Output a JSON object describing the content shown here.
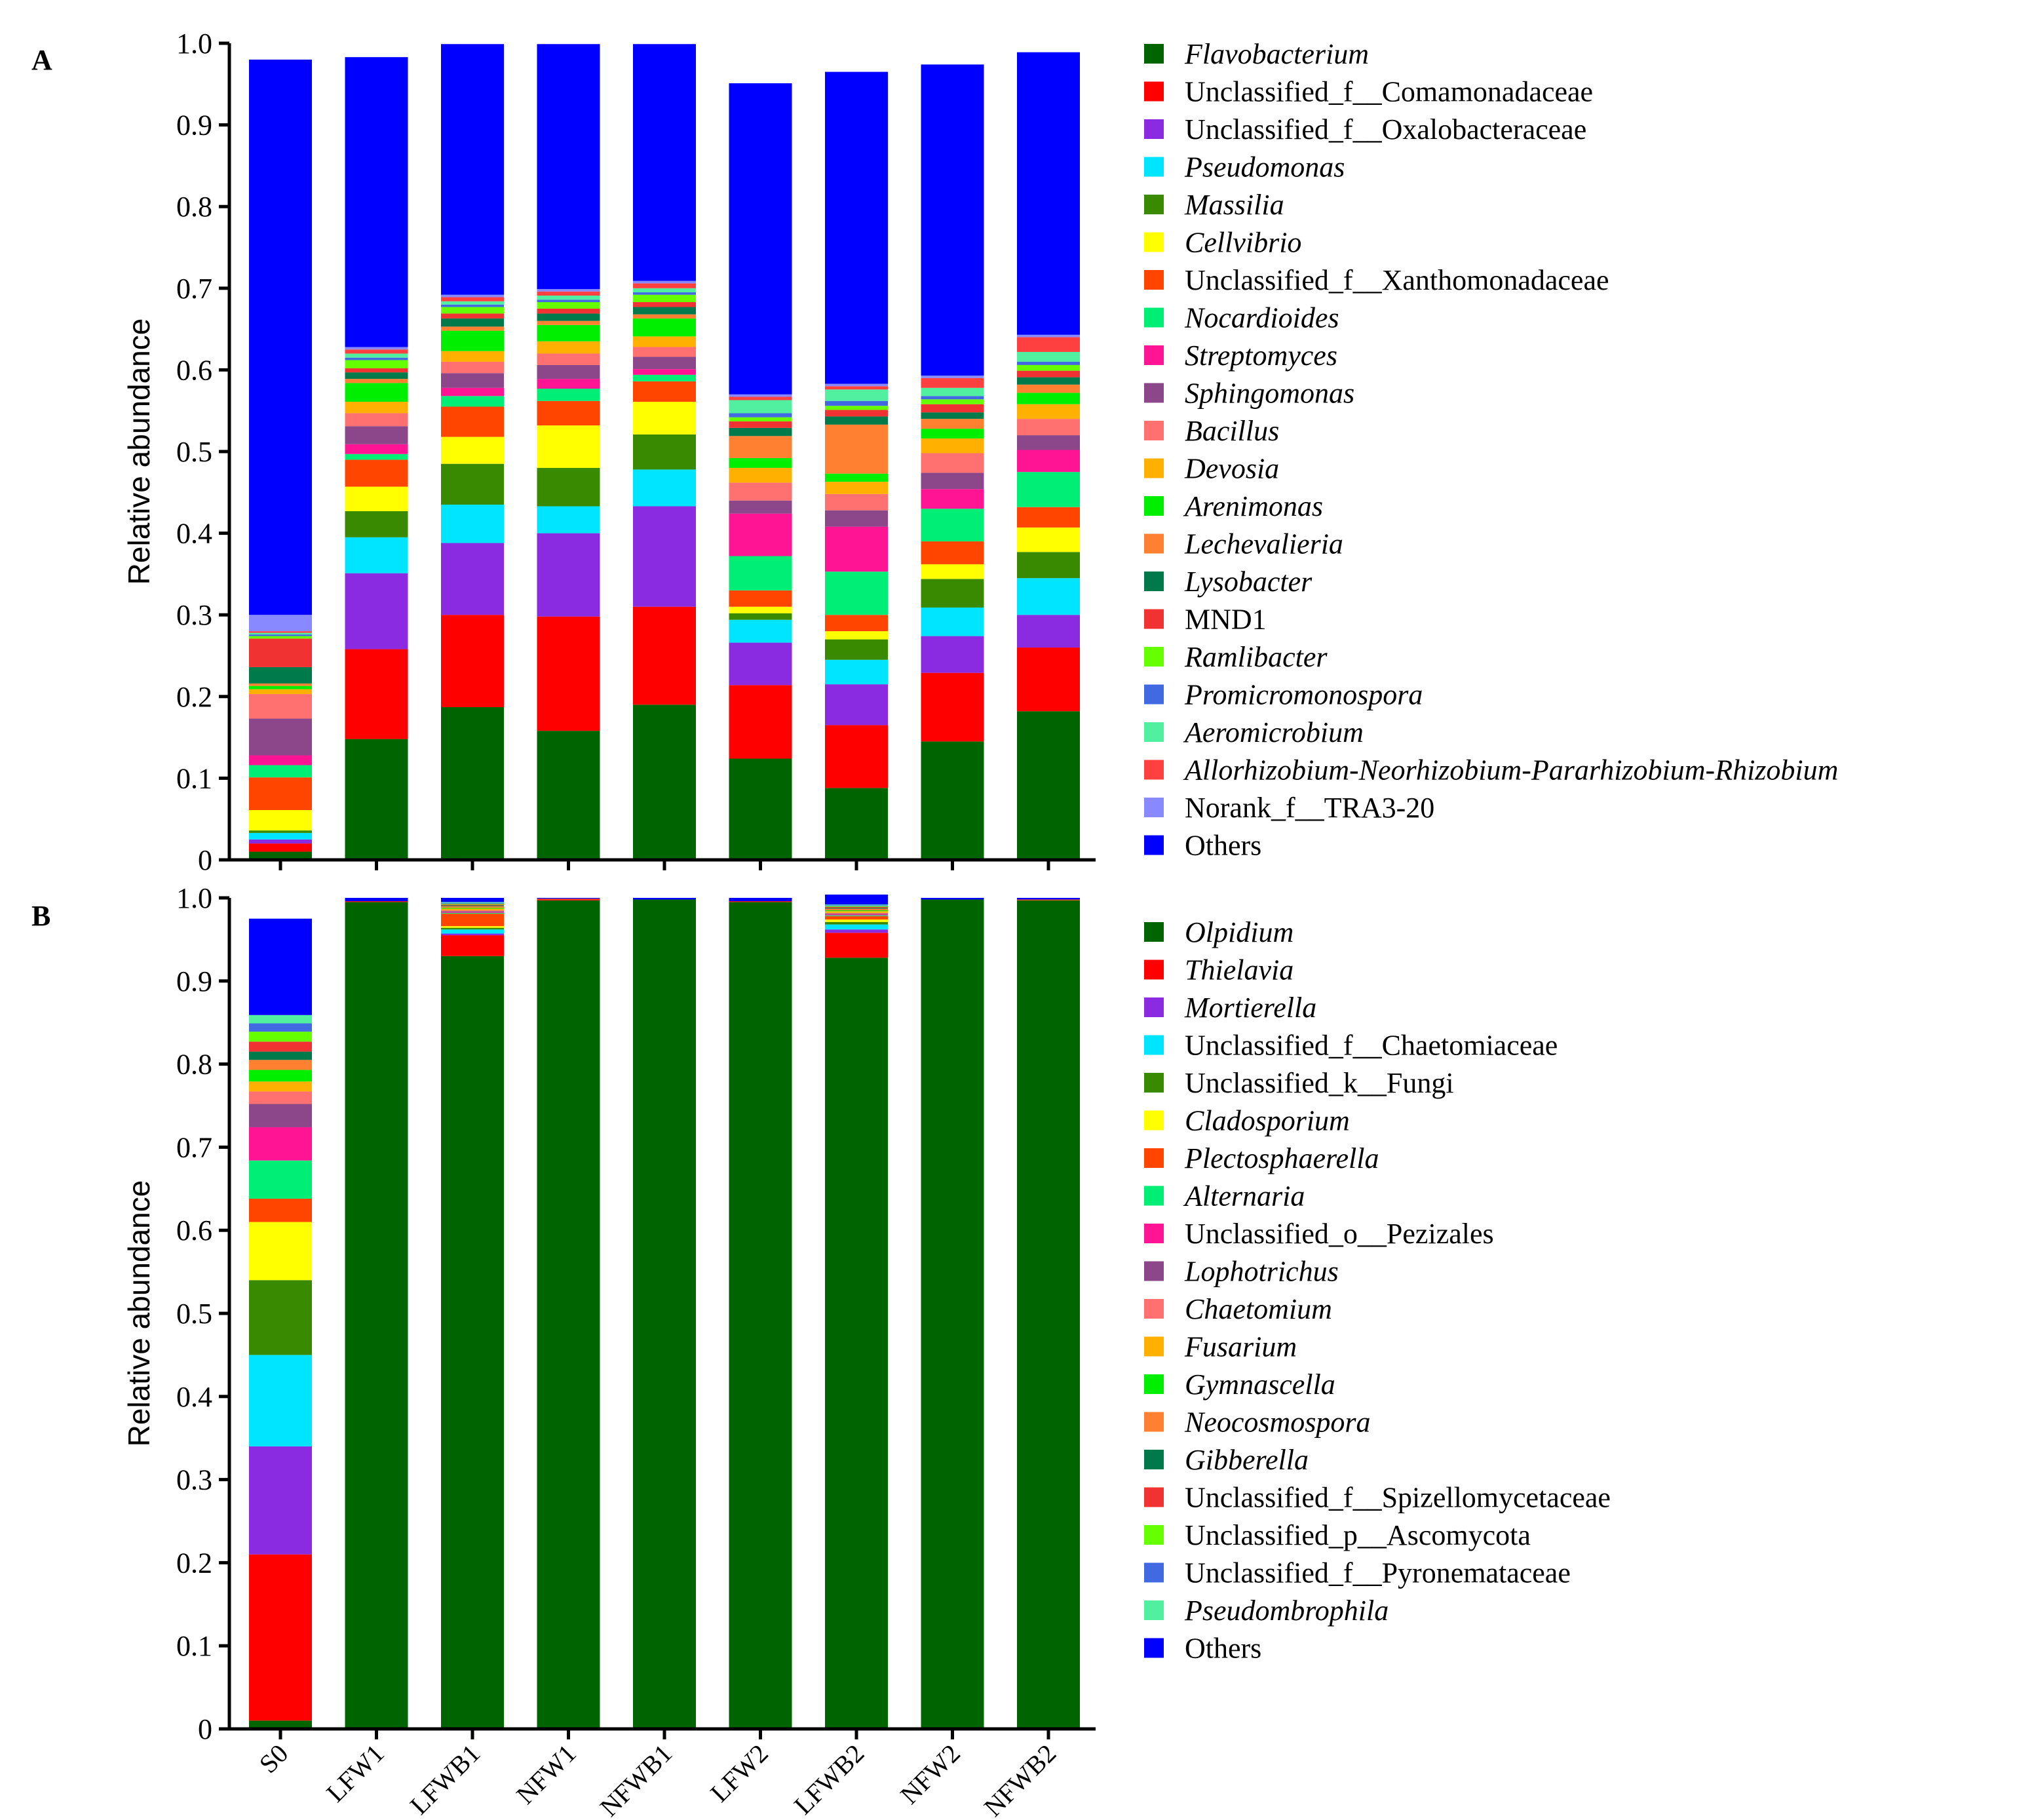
{
  "chart_data": [
    {
      "panel": "A",
      "type": "bar",
      "stacked": true,
      "ylabel": "Relative abundance",
      "ylim": [
        0,
        1.0
      ],
      "y_ticks": [
        "0",
        "0.1",
        "0.2",
        "0.3",
        "0.4",
        "0.5",
        "0.6",
        "0.7",
        "0.8",
        "0.9",
        "1.0"
      ],
      "categories": [
        "S0",
        "LFW1",
        "LFWB1",
        "NFW1",
        "NFWB1",
        "LFW2",
        "LFWB2",
        "NFW2",
        "NFWB2"
      ],
      "series": [
        {
          "name": "Flavobacterium",
          "italic": true,
          "color": "#006400",
          "values": [
            0.01,
            0.148,
            0.187,
            0.158,
            0.19,
            0.124,
            0.088,
            0.145,
            0.182
          ]
        },
        {
          "name": "Unclassified_f__Comamonadaceae",
          "italic": false,
          "color": "#ff0000",
          "values": [
            0.01,
            0.11,
            0.113,
            0.14,
            0.12,
            0.09,
            0.077,
            0.084,
            0.078
          ]
        },
        {
          "name": "Unclassified_f__Oxalobacteraceae",
          "italic": false,
          "color": "#8a2be2",
          "values": [
            0.005,
            0.093,
            0.088,
            0.102,
            0.123,
            0.052,
            0.05,
            0.045,
            0.04
          ]
        },
        {
          "name": "Pseudomonas",
          "italic": true,
          "color": "#00e5ff",
          "values": [
            0.008,
            0.044,
            0.047,
            0.033,
            0.045,
            0.028,
            0.03,
            0.035,
            0.045
          ]
        },
        {
          "name": "Massilia",
          "italic": true,
          "color": "#3a8a00",
          "values": [
            0.003,
            0.032,
            0.05,
            0.047,
            0.043,
            0.008,
            0.025,
            0.035,
            0.032
          ]
        },
        {
          "name": "Cellvibrio",
          "italic": true,
          "color": "#ffff00",
          "values": [
            0.025,
            0.03,
            0.033,
            0.052,
            0.04,
            0.008,
            0.01,
            0.018,
            0.03
          ]
        },
        {
          "name": "Unclassified_f__Xanthomonadaceae",
          "italic": false,
          "color": "#ff4500",
          "values": [
            0.04,
            0.033,
            0.037,
            0.03,
            0.025,
            0.02,
            0.02,
            0.028,
            0.025
          ]
        },
        {
          "name": "Nocardioides",
          "italic": true,
          "color": "#00ee76",
          "values": [
            0.015,
            0.007,
            0.013,
            0.015,
            0.008,
            0.042,
            0.053,
            0.04,
            0.043
          ]
        },
        {
          "name": "Streptomyces",
          "italic": true,
          "color": "#ff1493",
          "values": [
            0.012,
            0.012,
            0.01,
            0.012,
            0.007,
            0.052,
            0.055,
            0.024,
            0.027
          ]
        },
        {
          "name": "Sphingomonas",
          "italic": true,
          "color": "#8b4789",
          "values": [
            0.045,
            0.022,
            0.018,
            0.017,
            0.015,
            0.016,
            0.02,
            0.02,
            0.018
          ]
        },
        {
          "name": "Bacillus",
          "italic": true,
          "color": "#ff7070",
          "values": [
            0.03,
            0.016,
            0.014,
            0.014,
            0.012,
            0.022,
            0.02,
            0.024,
            0.02
          ]
        },
        {
          "name": "Devosia",
          "italic": true,
          "color": "#ffb000",
          "values": [
            0.006,
            0.014,
            0.013,
            0.015,
            0.013,
            0.018,
            0.015,
            0.018,
            0.018
          ]
        },
        {
          "name": "Arenimonas",
          "italic": true,
          "color": "#00ee00",
          "values": [
            0.004,
            0.023,
            0.025,
            0.02,
            0.022,
            0.012,
            0.01,
            0.012,
            0.014
          ]
        },
        {
          "name": "Lechevalieria",
          "italic": true,
          "color": "#ff8030",
          "values": [
            0.003,
            0.005,
            0.005,
            0.005,
            0.005,
            0.027,
            0.06,
            0.012,
            0.01
          ]
        },
        {
          "name": "Lysobacter",
          "italic": true,
          "color": "#007a4a",
          "values": [
            0.02,
            0.008,
            0.01,
            0.009,
            0.009,
            0.01,
            0.01,
            0.008,
            0.009
          ]
        },
        {
          "name": "MND1",
          "italic": false,
          "color": "#f03232",
          "values": [
            0.035,
            0.005,
            0.006,
            0.006,
            0.006,
            0.008,
            0.008,
            0.01,
            0.008
          ]
        },
        {
          "name": "Ramlibacter",
          "italic": true,
          "color": "#66ff00",
          "values": [
            0.003,
            0.01,
            0.008,
            0.008,
            0.009,
            0.005,
            0.005,
            0.006,
            0.007
          ]
        },
        {
          "name": "Promicromonospora",
          "italic": true,
          "color": "#4169e1",
          "values": [
            0.002,
            0.003,
            0.003,
            0.003,
            0.003,
            0.005,
            0.006,
            0.004,
            0.004
          ]
        },
        {
          "name": "Aeromicrobium",
          "italic": true,
          "color": "#50f0a0",
          "values": [
            0.002,
            0.005,
            0.004,
            0.005,
            0.005,
            0.016,
            0.014,
            0.01,
            0.012
          ]
        },
        {
          "name": "Allorhizobium-Neorhizobium-Pararhizobium-Rhizobium",
          "italic": true,
          "color": "#ff4040",
          "values": [
            0.002,
            0.005,
            0.005,
            0.005,
            0.006,
            0.004,
            0.004,
            0.012,
            0.018
          ]
        },
        {
          "name": "Norank_f__TRA3-20",
          "italic": false,
          "color": "#8888ff",
          "values": [
            0.02,
            0.003,
            0.003,
            0.003,
            0.003,
            0.003,
            0.003,
            0.003,
            0.003
          ]
        },
        {
          "name": "Others",
          "italic": false,
          "color": "#0000ff",
          "values": [
            0.68,
            0.355,
            0.307,
            0.3,
            0.29,
            0.381,
            0.382,
            0.381,
            0.346
          ]
        }
      ]
    },
    {
      "panel": "B",
      "type": "bar",
      "stacked": true,
      "ylabel": "Relative abundance",
      "ylim": [
        0,
        1.0
      ],
      "y_ticks": [
        "0",
        "0.1",
        "0.2",
        "0.3",
        "0.4",
        "0.5",
        "0.6",
        "0.7",
        "0.8",
        "0.9",
        "1.0"
      ],
      "categories": [
        "S0",
        "LFW1",
        "LFWB1",
        "NFW1",
        "NFWB1",
        "LFW2",
        "LFWB2",
        "NFW2",
        "NFWB2"
      ],
      "series": [
        {
          "name": "Olpidium",
          "italic": true,
          "color": "#006400",
          "values": [
            0.01,
            0.995,
            0.93,
            0.997,
            0.998,
            0.995,
            0.928,
            0.998,
            0.997
          ]
        },
        {
          "name": "Thielavia",
          "italic": true,
          "color": "#ff0000",
          "values": [
            0.2,
            0.001,
            0.025,
            0.001,
            0.0,
            0.001,
            0.03,
            0.0,
            0.0
          ]
        },
        {
          "name": "Mortierella",
          "italic": true,
          "color": "#8a2be2",
          "values": [
            0.13,
            0.0,
            0.002,
            0.0,
            0.0,
            0.0,
            0.004,
            0.0,
            0.0
          ]
        },
        {
          "name": "Unclassified_f__Chaetomiaceae",
          "italic": false,
          "color": "#00e5ff",
          "values": [
            0.11,
            0.0,
            0.005,
            0.0,
            0.0,
            0.0,
            0.006,
            0.0,
            0.0
          ]
        },
        {
          "name": "Unclassified_k__Fungi",
          "italic": false,
          "color": "#3a8a00",
          "values": [
            0.09,
            0.0,
            0.002,
            0.0,
            0.0,
            0.0,
            0.003,
            0.0,
            0.0
          ]
        },
        {
          "name": "Cladosporium",
          "italic": true,
          "color": "#ffff00",
          "values": [
            0.07,
            0.0,
            0.002,
            0.0,
            0.0,
            0.0,
            0.003,
            0.0,
            0.0
          ]
        },
        {
          "name": "Plectosphaerella",
          "italic": true,
          "color": "#ff4500",
          "values": [
            0.028,
            0.0,
            0.015,
            0.001,
            0.0,
            0.0,
            0.004,
            0.0,
            0.001
          ]
        },
        {
          "name": "Alternaria",
          "italic": true,
          "color": "#00ee76",
          "values": [
            0.046,
            0.0,
            0.001,
            0.0,
            0.0,
            0.0,
            0.001,
            0.0,
            0.0
          ]
        },
        {
          "name": "Unclassified_o__Pezizales",
          "italic": false,
          "color": "#ff1493",
          "values": [
            0.04,
            0.0,
            0.001,
            0.0,
            0.0,
            0.0,
            0.001,
            0.0,
            0.0
          ]
        },
        {
          "name": "Lophotrichus",
          "italic": true,
          "color": "#8b4789",
          "values": [
            0.028,
            0.0,
            0.001,
            0.0,
            0.0,
            0.0,
            0.001,
            0.0,
            0.0
          ]
        },
        {
          "name": "Chaetomium",
          "italic": true,
          "color": "#ff7070",
          "values": [
            0.015,
            0.0,
            0.001,
            0.0,
            0.0,
            0.0,
            0.001,
            0.0,
            0.0
          ]
        },
        {
          "name": "Fusarium",
          "italic": true,
          "color": "#ffb000",
          "values": [
            0.012,
            0.0,
            0.002,
            0.0,
            0.0,
            0.0,
            0.002,
            0.0,
            0.0
          ]
        },
        {
          "name": "Gymnascella",
          "italic": true,
          "color": "#00ee00",
          "values": [
            0.014,
            0.0,
            0.001,
            0.0,
            0.0,
            0.0,
            0.001,
            0.0,
            0.0
          ]
        },
        {
          "name": "Neocosmospora",
          "italic": true,
          "color": "#ff8030",
          "values": [
            0.012,
            0.0,
            0.002,
            0.0,
            0.0,
            0.0,
            0.002,
            0.0,
            0.0
          ]
        },
        {
          "name": "Gibberella",
          "italic": true,
          "color": "#007a4a",
          "values": [
            0.01,
            0.0,
            0.001,
            0.0,
            0.0,
            0.0,
            0.001,
            0.0,
            0.0
          ]
        },
        {
          "name": "Unclassified_f__Spizellomycetaceae",
          "italic": false,
          "color": "#f03232",
          "values": [
            0.012,
            0.0,
            0.001,
            0.0,
            0.0,
            0.0,
            0.001,
            0.0,
            0.0
          ]
        },
        {
          "name": "Unclassified_p__Ascomycota",
          "italic": false,
          "color": "#66ff00",
          "values": [
            0.012,
            0.0,
            0.001,
            0.0,
            0.0,
            0.0,
            0.001,
            0.0,
            0.0
          ]
        },
        {
          "name": "Unclassified_f__Pyronemataceae",
          "italic": false,
          "color": "#4169e1",
          "values": [
            0.01,
            0.0,
            0.001,
            0.0,
            0.0,
            0.0,
            0.001,
            0.0,
            0.0
          ]
        },
        {
          "name": "Pseudombrophila",
          "italic": true,
          "color": "#50f0a0",
          "values": [
            0.01,
            0.0,
            0.001,
            0.0,
            0.0,
            0.0,
            0.001,
            0.0,
            0.0
          ]
        },
        {
          "name": "Others",
          "italic": false,
          "color": "#0000ff",
          "values": [
            0.116,
            0.004,
            0.005,
            0.001,
            0.002,
            0.004,
            0.012,
            0.002,
            0.002
          ]
        }
      ]
    }
  ]
}
